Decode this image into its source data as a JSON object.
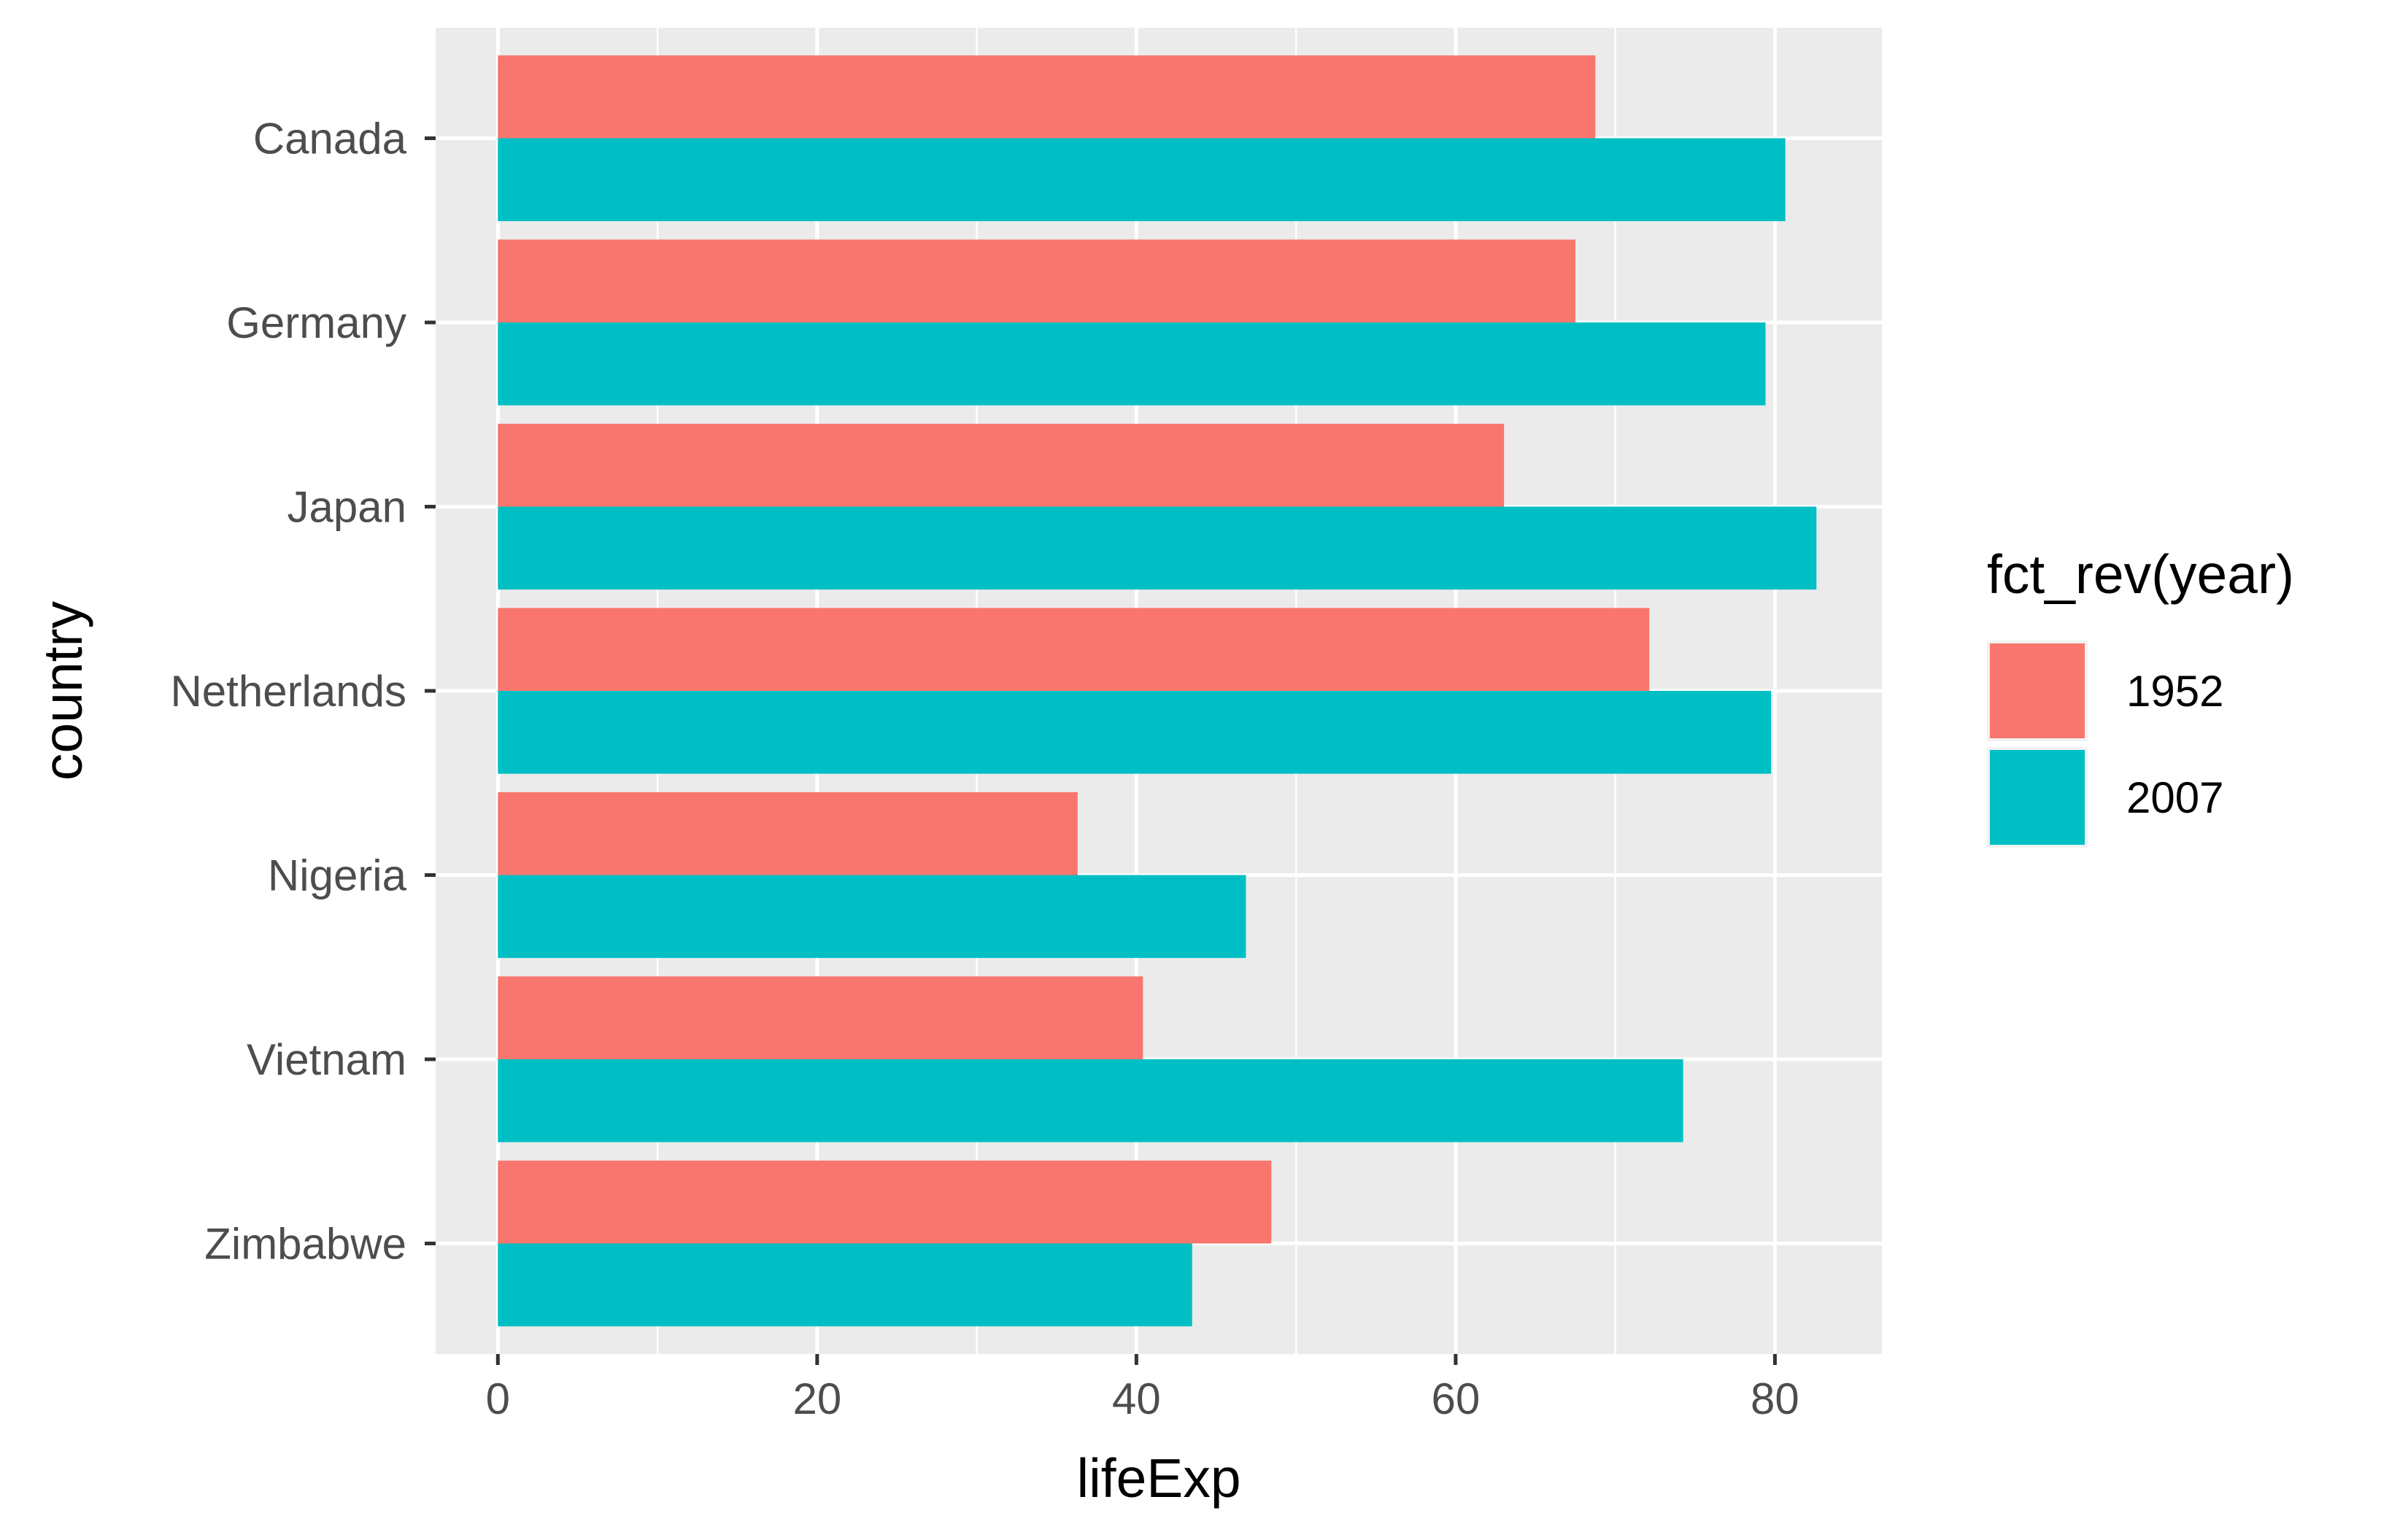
{
  "chart_data": {
    "type": "bar",
    "orientation": "horizontal",
    "categories": [
      "Canada",
      "Germany",
      "Japan",
      "Netherlands",
      "Nigeria",
      "Vietnam",
      "Zimbabwe"
    ],
    "series": [
      {
        "name": "1952",
        "color": "#F8766D",
        "values": [
          68.75,
          67.5,
          63.03,
          72.13,
          36.32,
          40.41,
          48.45
        ]
      },
      {
        "name": "2007",
        "color": "#00BFC4",
        "values": [
          80.65,
          79.41,
          82.6,
          79.76,
          46.86,
          74.25,
          43.49
        ]
      }
    ],
    "xlabel": "lifeExp",
    "ylabel": "country",
    "xlim": [
      -3.9,
      86.7
    ],
    "x_ticks": [
      0,
      20,
      40,
      60,
      80
    ],
    "grid": true,
    "legend": {
      "title": "fct_rev(year)",
      "position": "right"
    },
    "panel_background": "#EBEBEB"
  }
}
